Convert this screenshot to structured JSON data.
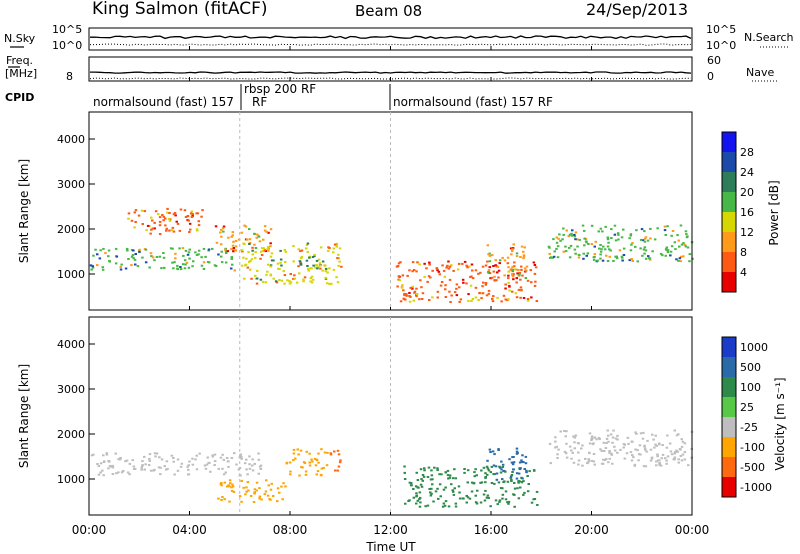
{
  "header": {
    "station": "King Salmon (fitACF)",
    "beam": "Beam 08",
    "date": "24/Sep/2013"
  },
  "chart_data": [
    {
      "type": "line",
      "panel": "noise",
      "ylabel_left": "N.Sky",
      "ylabel_right": "N.Search",
      "y_ticks_left": [
        "10^5",
        "10^0"
      ],
      "y_ticks_right": [
        "10^5",
        "10^0"
      ],
      "series": [
        {
          "name": "N.Sky",
          "style": "solid"
        },
        {
          "name": "N.Search",
          "style": "dotted"
        }
      ]
    },
    {
      "type": "line",
      "panel": "frequency",
      "ylabel_left_top": "Freq.",
      "ylabel_left_bottom": "[MHz]",
      "ylabel_right": "Nave",
      "y_ticks_left": [
        "8"
      ],
      "y_ticks_right": [
        "60",
        "0"
      ],
      "series": [
        {
          "name": "Freq.",
          "style": "solid"
        },
        {
          "name": "Nave",
          "style": "dotted"
        }
      ]
    },
    {
      "type": "table",
      "panel": "cpid",
      "label": "CPID",
      "segments": [
        {
          "name": "normalsound (fast) 157",
          "start_hour": 0,
          "end_hour": 6
        },
        {
          "name": "rbsp 200 RF",
          "start_hour": 6,
          "end_hour": 12
        },
        {
          "name": "normalsound (fast) 157 RF",
          "start_hour": 12,
          "end_hour": 24
        }
      ],
      "mid_label": "RF"
    },
    {
      "type": "heatmap",
      "panel": "power",
      "ylabel": "Slant Range [km]",
      "y_ticks": [
        "1000",
        "2000",
        "3000",
        "4000"
      ],
      "ylim": [
        200,
        4600
      ],
      "xlim_hours": [
        0,
        24
      ],
      "colorbar": {
        "label": "Power [dB]",
        "ticks": [
          "4",
          "8",
          "12",
          "16",
          "20",
          "24",
          "28"
        ],
        "colors": [
          "#1414f0",
          "#1c4aa8",
          "#2e7d5a",
          "#47b847",
          "#d6d600",
          "#ff9a1a",
          "#ff5a14",
          "#e80000"
        ]
      },
      "regions": [
        {
          "start_hour": 0.0,
          "end_hour": 5.8,
          "range_km": [
            1100,
            1600
          ],
          "level": 20
        },
        {
          "start_hour": 1.5,
          "end_hour": 4.5,
          "range_km": [
            1900,
            2500
          ],
          "level": 8
        },
        {
          "start_hour": 5.0,
          "end_hour": 7.2,
          "range_km": [
            1500,
            2100
          ],
          "level": 12
        },
        {
          "start_hour": 6.0,
          "end_hour": 10.0,
          "range_km": [
            800,
            1700
          ],
          "level": 16
        },
        {
          "start_hour": 8.2,
          "end_hour": 9.4,
          "range_km": [
            1100,
            1400
          ],
          "level": 24
        },
        {
          "start_hour": 12.2,
          "end_hour": 17.8,
          "range_km": [
            400,
            1300
          ],
          "level": 8
        },
        {
          "start_hour": 15.8,
          "end_hour": 17.4,
          "range_km": [
            900,
            1700
          ],
          "level": 12
        },
        {
          "start_hour": 18.2,
          "end_hour": 24.0,
          "range_km": [
            1300,
            2100
          ],
          "level": 20
        }
      ]
    },
    {
      "type": "heatmap",
      "panel": "velocity",
      "ylabel": "Slant Range [km]",
      "y_ticks": [
        "1000",
        "2000",
        "3000",
        "4000"
      ],
      "ylim": [
        200,
        4600
      ],
      "xlim_hours": [
        0,
        24
      ],
      "colorbar": {
        "label": "Velocity [m s⁻¹]",
        "ticks": [
          "1000",
          "500",
          "100",
          "25",
          "-25",
          "-100",
          "-500",
          "-1000"
        ],
        "colors": [
          "#1a3cc8",
          "#2a6aa8",
          "#2e8a4a",
          "#58c848",
          "#bebebe",
          "#ffa500",
          "#ff6a10",
          "#e80000"
        ]
      },
      "regions": [
        {
          "start_hour": 0.0,
          "end_hour": 7.0,
          "range_km": [
            1100,
            1600
          ],
          "level": 0
        },
        {
          "start_hour": 5.0,
          "end_hour": 7.8,
          "range_km": [
            500,
            1000
          ],
          "level": -100
        },
        {
          "start_hour": 7.8,
          "end_hour": 9.5,
          "range_km": [
            1100,
            1700
          ],
          "level": -100
        },
        {
          "start_hour": 9.5,
          "end_hour": 10.0,
          "range_km": [
            1200,
            1700
          ],
          "level": -500
        },
        {
          "start_hour": 12.5,
          "end_hour": 17.8,
          "range_km": [
            400,
            1300
          ],
          "level": 100
        },
        {
          "start_hour": 15.8,
          "end_hour": 17.4,
          "range_km": [
            1000,
            1700
          ],
          "level": 500
        },
        {
          "start_hour": 18.2,
          "end_hour": 24.0,
          "range_km": [
            1300,
            2100
          ],
          "level": 0
        }
      ]
    }
  ],
  "x_axis": {
    "ticks": [
      "00:00",
      "04:00",
      "08:00",
      "12:00",
      "16:00",
      "20:00",
      "00:00"
    ],
    "label": "Time UT"
  }
}
